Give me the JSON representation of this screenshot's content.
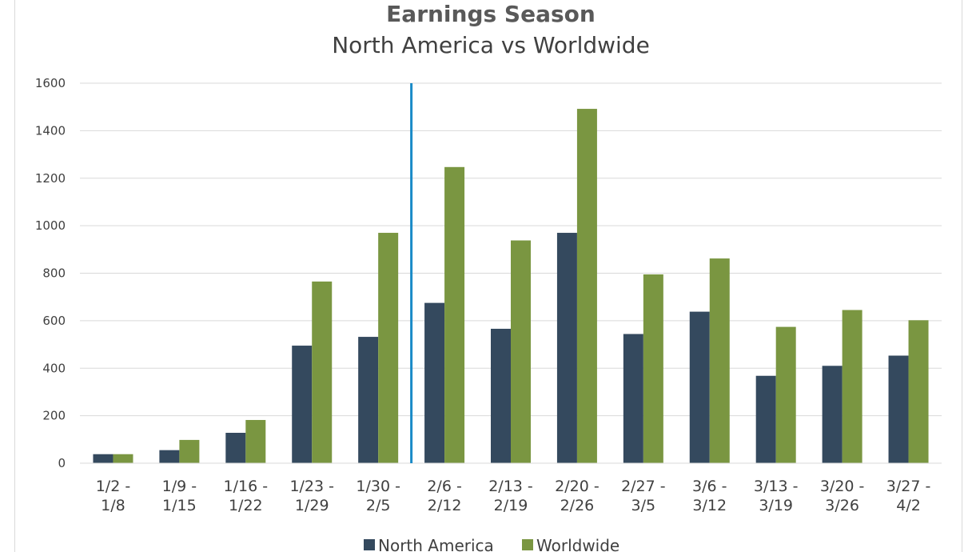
{
  "chart_data": {
    "type": "bar",
    "title": "Earnings Season",
    "subtitle": "North America vs Worldwide",
    "xlabel": "",
    "ylabel": "",
    "ylim": [
      0,
      1600
    ],
    "yticks": [
      0,
      200,
      400,
      600,
      800,
      1000,
      1200,
      1400,
      1600
    ],
    "grid": true,
    "legend_position": "bottom",
    "categories": [
      [
        "1/2 -",
        "1/8"
      ],
      [
        "1/9 -",
        "1/15"
      ],
      [
        "1/16 -",
        "1/22"
      ],
      [
        "1/23 -",
        "1/29"
      ],
      [
        "1/30 -",
        "2/5"
      ],
      [
        "2/6 -",
        "2/12"
      ],
      [
        "2/13 -",
        "2/19"
      ],
      [
        "2/20 -",
        "2/26"
      ],
      [
        "2/27 -",
        "3/5"
      ],
      [
        "3/6 -",
        "3/12"
      ],
      [
        "3/13 -",
        "3/19"
      ],
      [
        "3/20 -",
        "3/26"
      ],
      [
        "3/27 -",
        "4/2"
      ]
    ],
    "series": [
      {
        "name": "North America",
        "color": "#34495e",
        "values": [
          38,
          55,
          128,
          495,
          532,
          675,
          566,
          970,
          544,
          638,
          368,
          410,
          453
        ]
      },
      {
        "name": "Worldwide",
        "color": "#7a9641",
        "values": [
          38,
          98,
          182,
          765,
          970,
          1247,
          938,
          1492,
          795,
          862,
          574,
          645,
          602
        ]
      }
    ],
    "marker_line": {
      "after_category_index": 4,
      "color": "#1a8ac7"
    }
  }
}
